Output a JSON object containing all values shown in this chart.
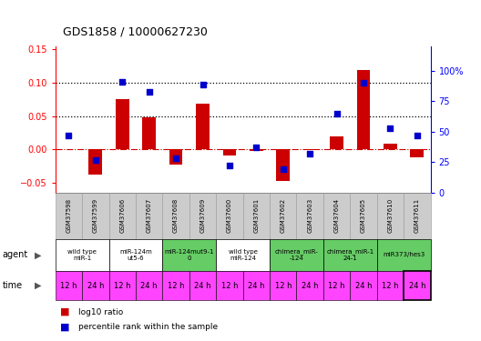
{
  "title": "GDS1858 / 10000627230",
  "samples": [
    "GSM37598",
    "GSM37599",
    "GSM37606",
    "GSM37607",
    "GSM37608",
    "GSM37609",
    "GSM37600",
    "GSM37601",
    "GSM37602",
    "GSM37603",
    "GSM37604",
    "GSM37605",
    "GSM37610",
    "GSM37611"
  ],
  "log10_ratio": [
    0.0,
    -0.038,
    0.075,
    0.048,
    -0.023,
    0.068,
    -0.009,
    -0.003,
    -0.048,
    -0.001,
    0.019,
    0.119,
    0.008,
    -0.012
  ],
  "percentile_rank": [
    47,
    27,
    91,
    83,
    28,
    89,
    22,
    37,
    19,
    32,
    65,
    90,
    53,
    47
  ],
  "agents": [
    {
      "label": "wild type\nmiR-1",
      "cols": [
        0,
        1
      ],
      "color": "#ffffff"
    },
    {
      "label": "miR-124m\nut5-6",
      "cols": [
        2,
        3
      ],
      "color": "#ffffff"
    },
    {
      "label": "miR-124mut9-1\n0",
      "cols": [
        4,
        5
      ],
      "color": "#66cc66"
    },
    {
      "label": "wild type\nmiR-124",
      "cols": [
        6,
        7
      ],
      "color": "#ffffff"
    },
    {
      "label": "chimera_miR-\n-124",
      "cols": [
        8,
        9
      ],
      "color": "#66cc66"
    },
    {
      "label": "chimera_miR-1\n24-1",
      "cols": [
        10,
        11
      ],
      "color": "#66cc66"
    },
    {
      "label": "miR373/hes3",
      "cols": [
        12,
        13
      ],
      "color": "#66cc66"
    }
  ],
  "times": [
    "12 h",
    "24 h",
    "12 h",
    "24 h",
    "12 h",
    "24 h",
    "12 h",
    "24 h",
    "12 h",
    "24 h",
    "12 h",
    "24 h",
    "12 h",
    "24 h"
  ],
  "bar_color": "#cc0000",
  "dot_color": "#0000cc",
  "ylim_left": [
    -0.065,
    0.155
  ],
  "ylim_right": [
    0,
    120.4
  ],
  "yticks_left": [
    -0.05,
    0.0,
    0.05,
    0.1,
    0.15
  ],
  "yticks_right": [
    0,
    25,
    50,
    75,
    100
  ],
  "ytick_labels_right": [
    "0",
    "25",
    "50",
    "75",
    "100%"
  ],
  "hlines": [
    0.05,
    0.1
  ],
  "zero_line_color": "#cc0000",
  "sample_bg": "#cccccc",
  "agent_bg_white": "#ffffff",
  "agent_bg_green": "#66cc66",
  "time_bg": "#ff44ff",
  "legend_bar_color": "#cc0000",
  "legend_dot_color": "#0000cc"
}
